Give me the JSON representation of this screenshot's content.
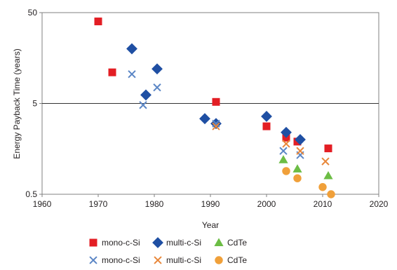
{
  "chart_data": {
    "type": "scatter",
    "title": "",
    "xlabel": "Year",
    "ylabel": "Energy Payback Time (years)",
    "xlim": [
      1960,
      2020
    ],
    "ylim": [
      0.5,
      50
    ],
    "y_scale": "log",
    "x_ticks": [
      1960,
      1970,
      1980,
      1990,
      2000,
      2010,
      2020
    ],
    "y_ticks": [
      {
        "value": 0.5,
        "label": "0.5"
      },
      {
        "value": 5,
        "label": "5"
      },
      {
        "value": 50,
        "label": "50"
      }
    ],
    "reference_line_y": 5,
    "grid": false,
    "legend_position": "bottom",
    "series": [
      {
        "name": "mono-c-Si",
        "marker": "square",
        "color": "#e31e24",
        "points": [
          [
            1970,
            40
          ],
          [
            1972.5,
            11
          ],
          [
            1991,
            5.2
          ],
          [
            2000,
            2.8
          ],
          [
            2003.5,
            2.1
          ],
          [
            2005.5,
            1.9
          ],
          [
            2011,
            1.6
          ]
        ]
      },
      {
        "name": "multi-c-Si",
        "marker": "diamond",
        "color": "#1f4fa3",
        "points": [
          [
            1976,
            20
          ],
          [
            1978.5,
            6.2
          ],
          [
            1980.5,
            12
          ],
          [
            1989,
            3.4
          ],
          [
            1991,
            3.0
          ],
          [
            2000,
            3.6
          ],
          [
            2003.5,
            2.4
          ],
          [
            2006,
            2.0
          ]
        ]
      },
      {
        "name": "CdTe",
        "marker": "triangle",
        "color": "#6cbd45",
        "points": [
          [
            2003,
            1.2
          ],
          [
            2005.5,
            0.95
          ],
          [
            2011,
            0.8
          ]
        ]
      },
      {
        "name": "mono-c-Si",
        "marker": "x",
        "color": "#5b86c5",
        "points": [
          [
            1976,
            10.5
          ],
          [
            1978,
            4.8
          ],
          [
            1980.5,
            7.5
          ],
          [
            1991,
            3.0
          ],
          [
            2003,
            1.5
          ],
          [
            2006,
            1.35
          ]
        ]
      },
      {
        "name": "multi-c-Si",
        "marker": "x",
        "color": "#e8873a",
        "points": [
          [
            1991,
            2.8
          ],
          [
            2003.5,
            1.8
          ],
          [
            2006,
            1.5
          ],
          [
            2010.5,
            1.15
          ]
        ]
      },
      {
        "name": "CdTe",
        "marker": "circle",
        "color": "#f0a03a",
        "points": [
          [
            2003.5,
            0.9
          ],
          [
            2005.5,
            0.75
          ],
          [
            2010,
            0.6
          ],
          [
            2011.5,
            0.5
          ]
        ]
      }
    ]
  }
}
